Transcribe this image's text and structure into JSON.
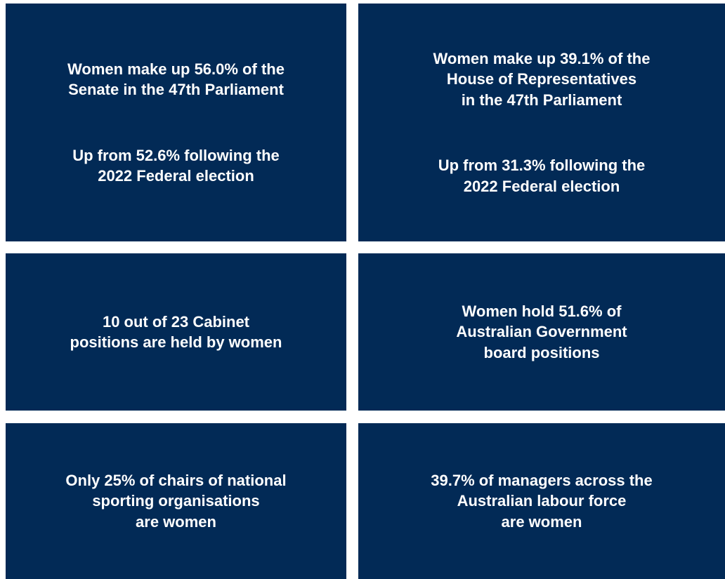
{
  "tiles": [
    {
      "paragraphs": [
        [
          "Women make up 56.0% of the",
          "Senate in the 47th Parliament"
        ],
        [
          "Up from 52.6% following the",
          "2022 Federal election"
        ]
      ]
    },
    {
      "paragraphs": [
        [
          "Women make up 39.1% of the",
          "House of Representatives",
          "in the 47th Parliament"
        ],
        [
          "Up from 31.3% following the",
          "2022 Federal election"
        ]
      ]
    },
    {
      "paragraphs": [
        [
          "10 out of 23 Cabinet",
          "positions are held by women"
        ]
      ]
    },
    {
      "paragraphs": [
        [
          "Women hold 51.6% of",
          "Australian Government",
          "board positions"
        ]
      ]
    },
    {
      "paragraphs": [
        [
          "Only 25% of chairs of national",
          "sporting organisations",
          "are women"
        ]
      ]
    },
    {
      "paragraphs": [
        [
          "39.7% of managers across the",
          "Australian labour force",
          "are women"
        ]
      ]
    }
  ]
}
